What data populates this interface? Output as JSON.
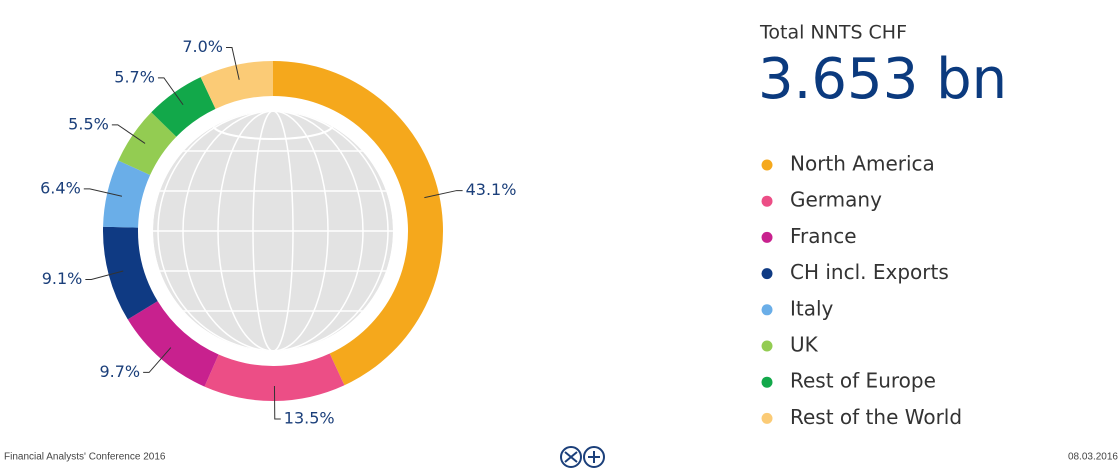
{
  "chart_data": {
    "type": "pie",
    "donut": true,
    "title": "Total NNTS CHF",
    "subtitle": "3.653 bn",
    "categories": [
      "North America",
      "Germany",
      "France",
      "CH incl. Exports",
      "Italy",
      "UK",
      "Rest of Europe",
      "Rest of the World"
    ],
    "values": [
      43.1,
      13.5,
      9.7,
      9.1,
      6.4,
      5.5,
      5.7,
      7.0
    ],
    "value_labels": [
      "43.1%",
      "13.5%",
      "9.7%",
      "9.1%",
      "6.4%",
      "5.5%",
      "5.7%",
      "7.0%"
    ],
    "colors": [
      "#f5a81c",
      "#ec4e86",
      "#c8218e",
      "#0f3a83",
      "#6aaee8",
      "#93cc52",
      "#12a84a",
      "#fbcb76"
    ],
    "legend": "right"
  },
  "footer": {
    "left": "Financial Analysts' Conference 2016",
    "right": "08.03.2016"
  }
}
